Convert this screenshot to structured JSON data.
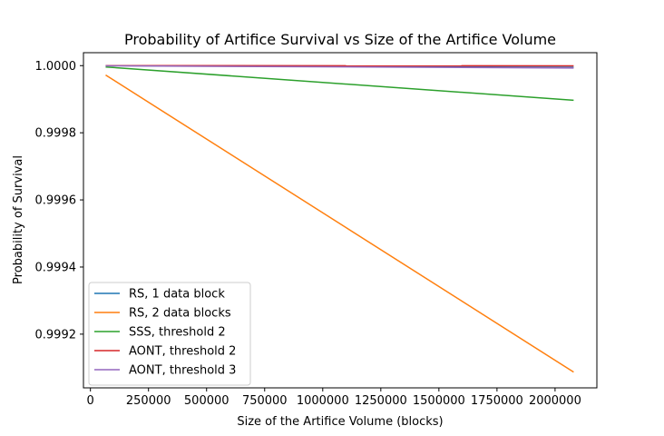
{
  "chart_data": {
    "type": "line",
    "title": "Probability of Artifice Survival vs Size of the Artifice Volume",
    "xlabel": "Size of the Artifice Volume (blocks)",
    "ylabel": "Probability of Survival",
    "xlim": [
      -30000,
      2180000
    ],
    "ylim": [
      0.99904,
      1.0000386
    ],
    "x_ticks": [
      0,
      250000,
      500000,
      750000,
      1000000,
      1250000,
      1500000,
      1750000,
      2000000
    ],
    "x_tick_labels": [
      "0",
      "250000",
      "500000",
      "750000",
      "1000000",
      "1250000",
      "1500000",
      "1750000",
      "2000000"
    ],
    "y_ticks": [
      0.9992,
      0.9994,
      0.9996,
      0.9998,
      1.0
    ],
    "y_tick_labels": [
      "0.9992",
      "0.9994",
      "0.9996",
      "0.9998",
      "1.0000"
    ],
    "grid": false,
    "legend_position": "lower-left",
    "series": [
      {
        "name": "RS, 1 data block",
        "color": "#1f77b4",
        "x": [
          65536,
          2080000
        ],
        "y": [
          1.0,
          0.999995
        ]
      },
      {
        "name": "RS, 2 data blocks",
        "color": "#ff7f0e",
        "x": [
          65536,
          2080000
        ],
        "y": [
          0.999972,
          0.999087
        ]
      },
      {
        "name": "SSS, threshold 2",
        "color": "#2ca02c",
        "x": [
          65536,
          2080000
        ],
        "y": [
          0.999996,
          0.999897
        ]
      },
      {
        "name": "AONT, threshold 2",
        "color": "#d62728",
        "x": [
          65536,
          2080000
        ],
        "y": [
          1.0,
          0.9999995
        ]
      },
      {
        "name": "AONT, threshold 3",
        "color": "#9467bd",
        "x": [
          65536,
          2080000
        ],
        "y": [
          0.9999995,
          0.999993
        ]
      }
    ]
  }
}
